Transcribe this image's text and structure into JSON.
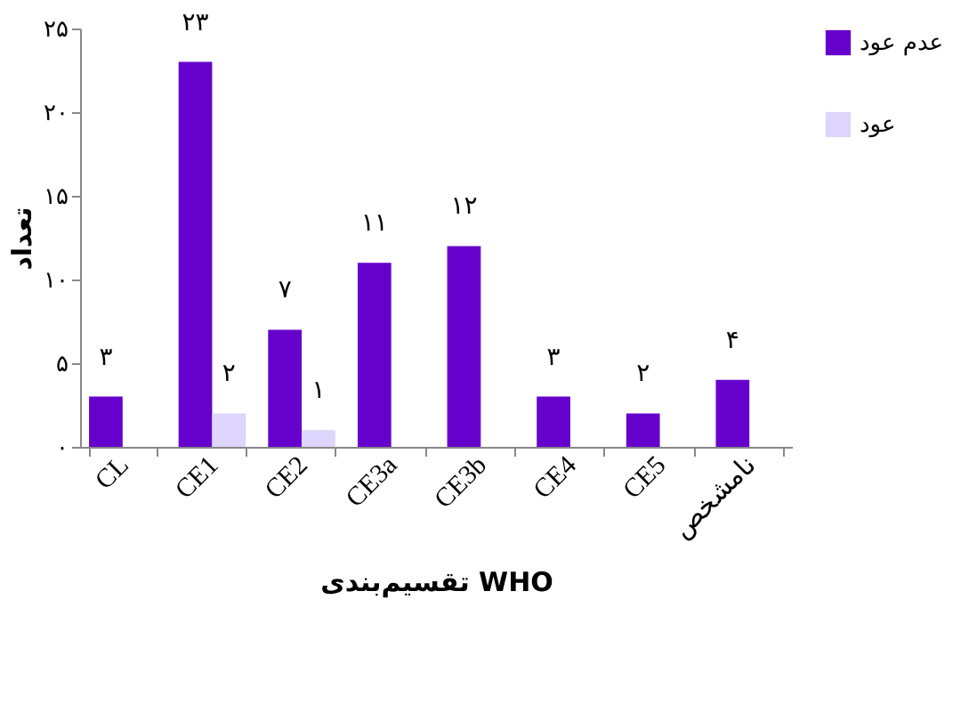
{
  "chart_data": {
    "type": "bar",
    "xlabel": "تقسیم‌بندی WHO",
    "ylabel": "تعداد",
    "categories": [
      "CL",
      "CE1",
      "CE2",
      "CE3a",
      "CE3b",
      "CE4",
      "CE5",
      "نامشخص"
    ],
    "series": [
      {
        "name": "عدم عود",
        "color": "#6600cc",
        "values": [
          3,
          23,
          7,
          11,
          12,
          3,
          2,
          4
        ],
        "value_labels": [
          "۳",
          "۲۳",
          "۷",
          "۱۱",
          "۱۲",
          "۳",
          "۲",
          "۴"
        ]
      },
      {
        "name": "عود",
        "color": "#ddd5fc",
        "values": [
          null,
          2,
          1,
          null,
          null,
          null,
          null,
          null
        ],
        "value_labels": [
          null,
          "۲",
          "۱",
          null,
          null,
          null,
          null,
          null
        ]
      }
    ],
    "ylim": [
      0,
      25
    ],
    "yticks": [
      {
        "value": 0,
        "label": "۰"
      },
      {
        "value": 5,
        "label": "۵"
      },
      {
        "value": 10,
        "label": "۱۰"
      },
      {
        "value": 15,
        "label": "۱۵"
      },
      {
        "value": 20,
        "label": "۲۰"
      },
      {
        "value": 25,
        "label": "۲۵"
      }
    ],
    "grid": false,
    "legend": "top right"
  }
}
